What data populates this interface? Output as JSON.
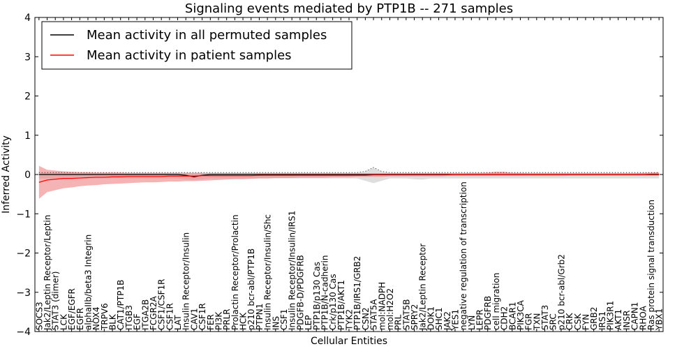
{
  "chart_data": {
    "type": "line",
    "title": "Signaling events mediated by PTP1B -- 271 samples",
    "xlabel": "Cellular Entities",
    "ylabel": "Inferred Activity",
    "ylim": [
      -4,
      4
    ],
    "yticks": [
      -4,
      -3,
      -2,
      -1,
      0,
      1,
      2,
      3,
      4
    ],
    "yticklabels": [
      "−4",
      "−3",
      "−2",
      "−1",
      "0",
      "1",
      "2",
      "3",
      "4"
    ],
    "legend": {
      "placement": "top-left",
      "entries": [
        {
          "label": "Mean activity in all permuted samples",
          "color": "#000000"
        },
        {
          "label": "Mean activity in patient samples",
          "color": "#ff0000"
        }
      ]
    },
    "categories": [
      "SOCS3",
      "Jak2/Leptin Receptor/Leptin",
      "STAT3 (dimer)",
      "LCK",
      "EGF/EGFR",
      "EGFR",
      "alphaIIb/beta3 Integrin",
      "NOX4",
      "TRPV6",
      "BLK",
      "CAT1/PTP1B",
      "ITGB3",
      "EGF",
      "ITGA2B",
      "FCGR2A",
      "CSF1/CSF1R",
      "CSF1R",
      "LAT",
      "Insulin Receptor/Insulin",
      "CAV1",
      "CSF1R",
      "FER",
      "PI3K",
      "PRLR",
      "Prolactin Receptor/Prolactin",
      "HCK",
      "p210 bcr-abl/PTP1B",
      "PTPN1",
      "Insulin Receptor/Insulin/Shc",
      "INS",
      "CSF1",
      "Insulin Receptor/Insulin/IRS1",
      "PDGFB-D/PDGFRB",
      "LEP",
      "PTP1B/p130 Cas",
      "PTP1B/N-cadherin",
      "Crk/p130 Cas",
      "PTP1B/AKT1",
      "TYK2",
      "PTP1B/IRS1/GRB2",
      "CSN2",
      "STAT5A",
      "mol:NADPH",
      "mol:H2O2",
      "PRL",
      "STAT5B",
      "SPRY2",
      "Jak2/Leptin Receptor",
      "DOK1",
      "SHC1",
      "JAK2",
      "YES1",
      "negative regulation of transcription",
      "LYN",
      "LEPR",
      "PDGFRB",
      "cell migration",
      "CDH2",
      "BCAR1",
      "PIK3CA",
      "FGR",
      "TXN",
      "STAT3",
      "SRC",
      "p210 bcr-abl/Grb2",
      "CRK",
      "CSK",
      "FYN",
      "GRB2",
      "IRS1",
      "PIK3R1",
      "AKT1",
      "INSR",
      "CAPN1",
      "RHOA",
      "Ras protein signal transduction",
      "YBX1"
    ],
    "series": [
      {
        "name": "Mean activity in patient samples",
        "color": "#ff0000",
        "values": [
          -0.2,
          -0.14,
          -0.12,
          -0.1,
          -0.1,
          -0.09,
          -0.08,
          -0.07,
          -0.07,
          -0.06,
          -0.06,
          -0.05,
          -0.05,
          -0.05,
          -0.05,
          -0.05,
          -0.04,
          -0.04,
          -0.04,
          -0.04,
          -0.03,
          -0.03,
          -0.03,
          -0.03,
          -0.03,
          -0.03,
          -0.03,
          -0.02,
          -0.02,
          -0.02,
          -0.02,
          -0.02,
          -0.02,
          -0.02,
          -0.02,
          -0.02,
          -0.02,
          -0.02,
          -0.02,
          -0.02,
          -0.02,
          -0.01,
          -0.01,
          -0.01,
          -0.01,
          -0.01,
          -0.01,
          -0.01,
          -0.01,
          -0.01,
          -0.01,
          0,
          0,
          0,
          0,
          0,
          0,
          0,
          0,
          0,
          0,
          0,
          0,
          0,
          0,
          0,
          0,
          0,
          0,
          0,
          0,
          0,
          0,
          0,
          0,
          0.01,
          0.01
        ],
        "band_upper": [
          0.22,
          0.12,
          0.1,
          0.08,
          0.07,
          0.06,
          0.06,
          0.05,
          0.05,
          0.05,
          0.05,
          0.04,
          0.04,
          0.04,
          0.04,
          0.04,
          0.04,
          0.04,
          0.04,
          0.04,
          0.04,
          0.03,
          0.03,
          0.03,
          0.03,
          0.03,
          0.03,
          0.03,
          0.03,
          0.03,
          0.03,
          0.03,
          0.03,
          0.03,
          0.03,
          0.03,
          0.03,
          0.03,
          0.03,
          0.03,
          0.03,
          0.03,
          0.03,
          0.03,
          0.03,
          0.03,
          0.03,
          0.03,
          0.03,
          0.03,
          0.03,
          0.03,
          0.03,
          0.04,
          0.04,
          0.05,
          0.07,
          0.07,
          0.04,
          0.04,
          0.03,
          0.03,
          0.03,
          0.03,
          0.03,
          0.03,
          0.03,
          0.03,
          0.03,
          0.03,
          0.03,
          0.03,
          0.03,
          0.03,
          0.04,
          0.05,
          0.06
        ],
        "band_lower": [
          -0.62,
          -0.45,
          -0.4,
          -0.35,
          -0.33,
          -0.3,
          -0.28,
          -0.27,
          -0.25,
          -0.24,
          -0.23,
          -0.22,
          -0.21,
          -0.2,
          -0.2,
          -0.19,
          -0.18,
          -0.18,
          -0.17,
          -0.17,
          -0.16,
          -0.15,
          -0.14,
          -0.13,
          -0.12,
          -0.12,
          -0.11,
          -0.1,
          -0.1,
          -0.09,
          -0.09,
          -0.09,
          -0.08,
          -0.08,
          -0.08,
          -0.08,
          -0.07,
          -0.07,
          -0.07,
          -0.06,
          -0.06,
          -0.06,
          -0.06,
          -0.05,
          -0.05,
          -0.05,
          -0.05,
          -0.05,
          -0.05,
          -0.05,
          -0.04,
          -0.04,
          -0.04,
          -0.04,
          -0.04,
          -0.04,
          -0.04,
          -0.04,
          -0.04,
          -0.04,
          -0.04,
          -0.04,
          -0.04,
          -0.04,
          -0.04,
          -0.03,
          -0.03,
          -0.03,
          -0.03,
          -0.03,
          -0.03,
          -0.03,
          -0.03,
          -0.03,
          -0.03,
          -0.03,
          -0.03
        ]
      },
      {
        "name": "Mean activity in all permuted samples",
        "color": "#000000",
        "values": [
          0,
          0,
          0,
          0,
          0,
          0,
          0,
          0,
          0,
          0,
          0,
          0,
          0,
          0,
          0,
          0,
          0,
          0,
          -0.02,
          -0.06,
          -0.02,
          0,
          0,
          0,
          0,
          0,
          0,
          0,
          0,
          0,
          0,
          0,
          0,
          0,
          0,
          0,
          0,
          0,
          0,
          0,
          0,
          0,
          0,
          0,
          0,
          0,
          0,
          0,
          0,
          0,
          0,
          0,
          0,
          0,
          0,
          0,
          0,
          0,
          0,
          0,
          0,
          0,
          0,
          0,
          0,
          0,
          0,
          0,
          0,
          0,
          0,
          0,
          0,
          0,
          0,
          0,
          0
        ],
        "band_upper": [
          0.05,
          0.05,
          0.05,
          0.05,
          0.05,
          0.05,
          0.05,
          0.05,
          0.05,
          0.05,
          0.05,
          0.05,
          0.05,
          0.05,
          0.05,
          0.05,
          0.05,
          0.05,
          0.05,
          0.05,
          0.05,
          0.05,
          0.05,
          0.05,
          0.05,
          0.05,
          0.05,
          0.05,
          0.05,
          0.05,
          0.05,
          0.05,
          0.05,
          0.05,
          0.05,
          0.05,
          0.05,
          0.05,
          0.05,
          0.05,
          0.08,
          0.18,
          0.08,
          0.05,
          0.05,
          0.05,
          0.05,
          0.05,
          0.05,
          0.05,
          0.05,
          0.05,
          0.05,
          0.05,
          0.05,
          0.05,
          0.05,
          0.05,
          0.05,
          0.05,
          0.05,
          0.05,
          0.05,
          0.05,
          0.05,
          0.05,
          0.05,
          0.05,
          0.05,
          0.05,
          0.05,
          0.05,
          0.05,
          0.05,
          0.05,
          0.05,
          0.05
        ],
        "band_lower": [
          -0.1,
          -0.1,
          -0.1,
          -0.1,
          -0.1,
          -0.1,
          -0.1,
          -0.1,
          -0.1,
          -0.1,
          -0.1,
          -0.1,
          -0.1,
          -0.1,
          -0.1,
          -0.1,
          -0.1,
          -0.1,
          -0.12,
          -0.14,
          -0.12,
          -0.1,
          -0.1,
          -0.1,
          -0.1,
          -0.1,
          -0.1,
          -0.1,
          -0.1,
          -0.1,
          -0.1,
          -0.1,
          -0.1,
          -0.1,
          -0.1,
          -0.1,
          -0.1,
          -0.1,
          -0.1,
          -0.1,
          -0.16,
          -0.22,
          -0.16,
          -0.1,
          -0.1,
          -0.1,
          -0.12,
          -0.13,
          -0.1,
          -0.1,
          -0.1,
          -0.1,
          -0.1,
          -0.1,
          -0.1,
          -0.1,
          -0.1,
          -0.1,
          -0.1,
          -0.1,
          -0.1,
          -0.1,
          -0.1,
          -0.1,
          -0.1,
          -0.1,
          -0.1,
          -0.1,
          -0.1,
          -0.1,
          -0.1,
          -0.1,
          -0.1,
          -0.1,
          -0.1,
          -0.1,
          -0.1
        ]
      }
    ]
  }
}
